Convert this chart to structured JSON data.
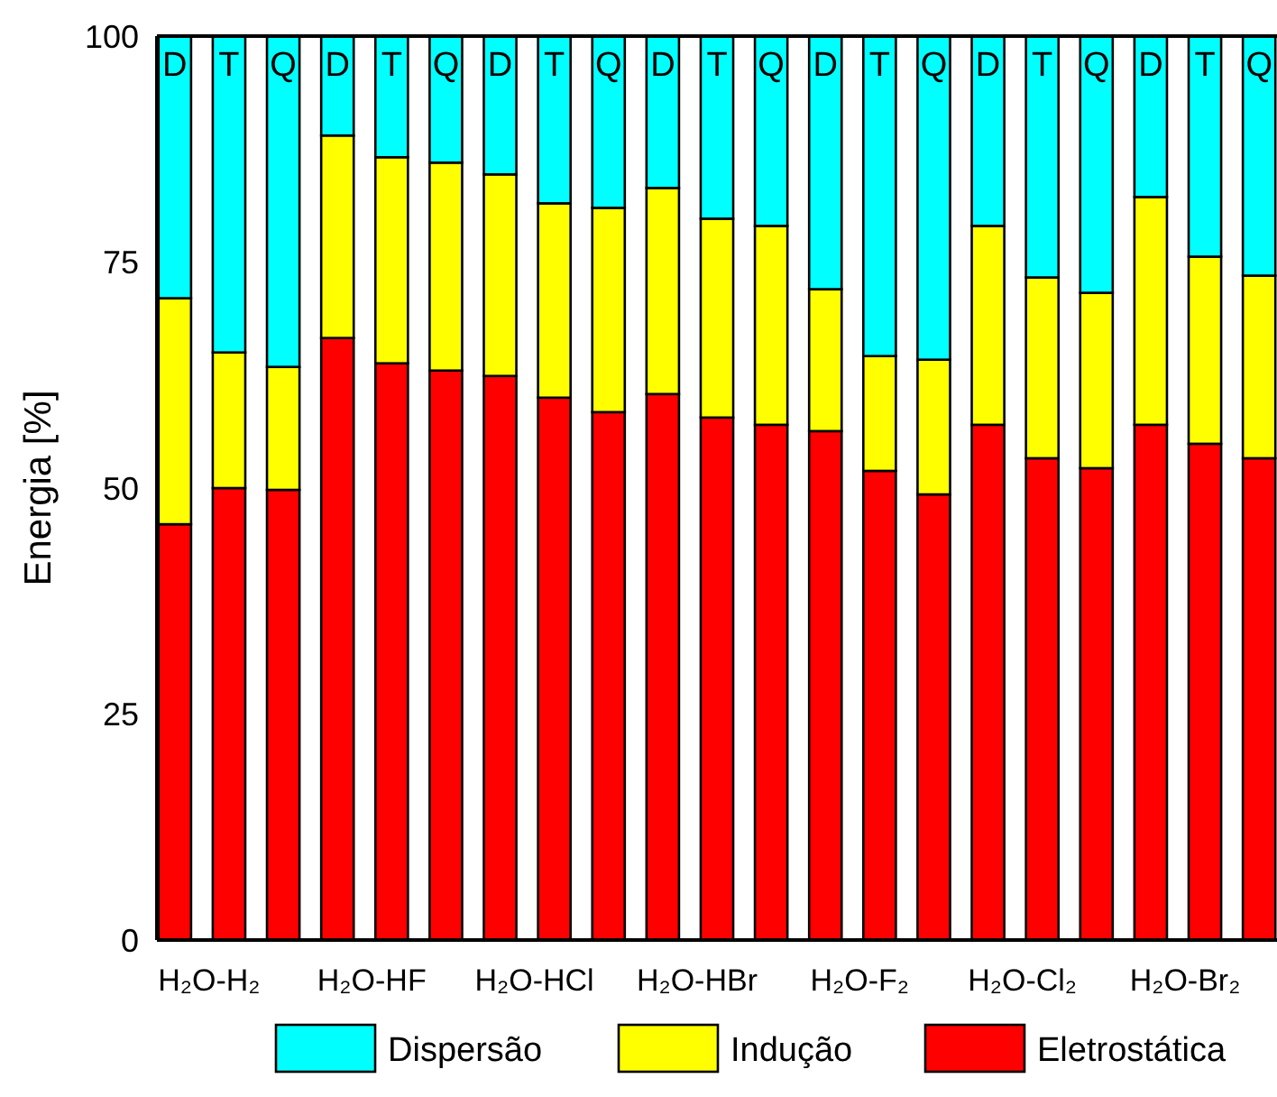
{
  "chart_data": {
    "type": "bar",
    "stacked": true,
    "ylabel": "Energia [%]",
    "ylim": [
      0,
      100
    ],
    "yticks": [
      0,
      25,
      50,
      75,
      100
    ],
    "grid": false,
    "legend": "bottom",
    "categories": [
      "D",
      "T",
      "Q",
      "D",
      "T",
      "Q",
      "D",
      "T",
      "Q",
      "D",
      "T",
      "Q",
      "D",
      "T",
      "Q",
      "D",
      "T",
      "Q",
      "D",
      "T",
      "Q"
    ],
    "annotations": [
      "H₂O-H₂",
      "H₂O-HF",
      "H₂O-HCl",
      "H₂O-HBr",
      "H₂O-F₂",
      "H₂O-Cl₂",
      "H₂O-Br₂"
    ],
    "series": [
      {
        "name": "Eletrostática",
        "color": "#ff0000",
        "values": [
          46,
          50,
          49.8,
          66.6,
          63.8,
          63,
          62.4,
          60,
          58.4,
          60.4,
          57.8,
          57,
          56.3,
          51.9,
          49.3,
          57,
          53.3,
          52.2,
          57,
          54.9,
          53.3
        ]
      },
      {
        "name": "Indução",
        "color": "#ffff00",
        "values": [
          25,
          15,
          13.6,
          22.4,
          22.8,
          23,
          22.3,
          21.5,
          22.6,
          22.8,
          22,
          22,
          15.7,
          12.7,
          14.9,
          22,
          20,
          19.4,
          25.2,
          20.7,
          20.2
        ]
      },
      {
        "name": "Dispersão",
        "color": "#00ffff",
        "values": [
          29,
          35,
          36.6,
          11,
          13.4,
          14,
          15.3,
          18.5,
          19,
          16.8,
          20.2,
          21,
          28,
          35.4,
          35.8,
          21,
          26.7,
          28.4,
          17.8,
          24.4,
          26.5
        ]
      }
    ]
  }
}
